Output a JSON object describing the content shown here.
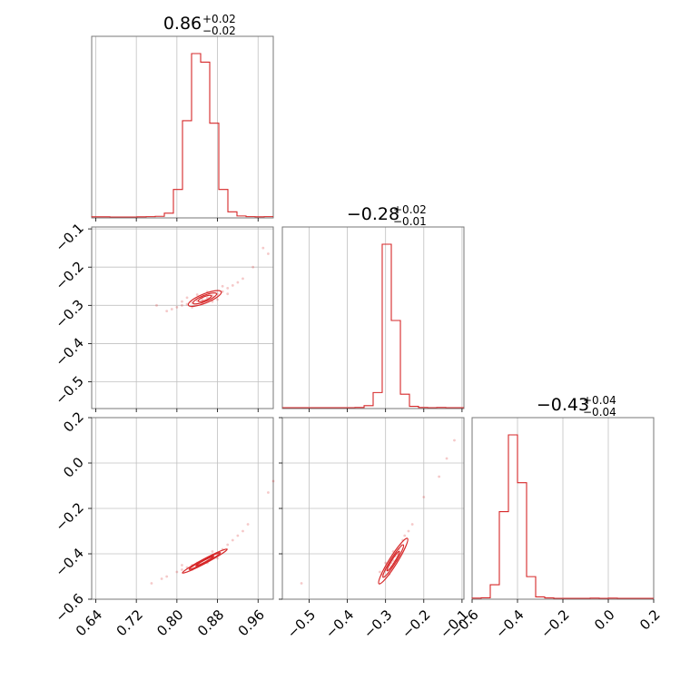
{
  "chart_data": {
    "type": "corner",
    "color": "#d62728",
    "grid": true,
    "params": [
      {
        "range": [
          0.632,
          0.99
        ],
        "ticks": [
          0.64,
          0.72,
          0.8,
          0.88,
          0.96
        ],
        "tick_labels": [
          "0.64",
          "0.72",
          "0.80",
          "0.88",
          "0.96"
        ],
        "title_median": "0.86",
        "title_plus": "+0.02",
        "title_minus": "−0.02"
      },
      {
        "range": [
          -0.57,
          -0.095
        ],
        "ticks": [
          -0.5,
          -0.4,
          -0.3,
          -0.2,
          -0.1
        ],
        "tick_labels": [
          "−0.5",
          "−0.4",
          "−0.3",
          "−0.2",
          "−0.1"
        ],
        "title_median": "−0.28",
        "title_plus": "+0.02",
        "title_minus": "−0.01"
      },
      {
        "range": [
          -0.6,
          0.2
        ],
        "ticks": [
          -0.6,
          -0.4,
          -0.2,
          0.0,
          0.2
        ],
        "tick_labels": [
          "−0.6",
          "−0.4",
          "−0.2",
          "0.0",
          "0.2"
        ],
        "title_median": "−0.43",
        "title_plus": "+0.04",
        "title_minus": "−0.04"
      }
    ],
    "histograms": [
      {
        "param": 0,
        "bin_edges": [
          0.632,
          0.6499,
          0.6678,
          0.6857,
          0.7036,
          0.7215,
          0.7394,
          0.7573,
          0.7752,
          0.7931,
          0.811,
          0.8289,
          0.8468,
          0.8647,
          0.8826,
          0.9005,
          0.9184,
          0.9363,
          0.9542,
          0.9721,
          0.99
        ],
        "counts": [
          1,
          1,
          0,
          0,
          0,
          1,
          2,
          4,
          22,
          160,
          560,
          950,
          900,
          545,
          160,
          30,
          6,
          2,
          1,
          2
        ]
      },
      {
        "param": 1,
        "bin_edges": [
          -0.57,
          -0.5462,
          -0.5225,
          -0.4988,
          -0.475,
          -0.4512,
          -0.4275,
          -0.4038,
          -0.38,
          -0.3562,
          -0.3325,
          -0.3088,
          -0.285,
          -0.2612,
          -0.2375,
          -0.2138,
          -0.19,
          -0.1662,
          -0.1425,
          -0.1188,
          -0.095
        ],
        "counts": [
          0,
          0,
          0,
          0,
          0,
          0,
          0,
          0,
          1,
          12,
          90,
          975,
          520,
          80,
          8,
          1,
          0,
          1,
          0,
          0
        ]
      },
      {
        "param": 2,
        "bin_edges": [
          -0.6,
          -0.56,
          -0.52,
          -0.48,
          -0.44,
          -0.4,
          -0.36,
          -0.32,
          -0.28,
          -0.24,
          -0.2,
          -0.16,
          -0.12,
          -0.08,
          -0.04,
          0.0,
          0.04,
          0.08,
          0.12,
          0.16,
          0.2
        ],
        "counts": [
          1,
          3,
          75,
          480,
          905,
          640,
          120,
          8,
          2,
          0,
          0,
          0,
          0,
          1,
          0,
          1,
          0,
          0,
          0,
          0
        ]
      }
    ],
    "scatter_pairs": [
      {
        "x_param": 0,
        "y_param": 1,
        "points": [
          {
            "x": 0.8,
            "y": -0.305
          },
          {
            "x": 0.81,
            "y": -0.3
          },
          {
            "x": 0.82,
            "y": -0.297
          },
          {
            "x": 0.83,
            "y": -0.293
          },
          {
            "x": 0.84,
            "y": -0.288
          },
          {
            "x": 0.85,
            "y": -0.284
          },
          {
            "x": 0.86,
            "y": -0.28
          },
          {
            "x": 0.87,
            "y": -0.275
          },
          {
            "x": 0.88,
            "y": -0.27
          },
          {
            "x": 0.89,
            "y": -0.264
          },
          {
            "x": 0.9,
            "y": -0.255
          },
          {
            "x": 0.91,
            "y": -0.248
          },
          {
            "x": 0.83,
            "y": -0.305
          },
          {
            "x": 0.85,
            "y": -0.295
          },
          {
            "x": 0.87,
            "y": -0.29
          },
          {
            "x": 0.84,
            "y": -0.272
          },
          {
            "x": 0.86,
            "y": -0.265
          },
          {
            "x": 0.82,
            "y": -0.28
          },
          {
            "x": 0.79,
            "y": -0.31
          },
          {
            "x": 0.78,
            "y": -0.315
          },
          {
            "x": 0.92,
            "y": -0.24
          },
          {
            "x": 0.93,
            "y": -0.23
          },
          {
            "x": 0.95,
            "y": -0.2
          },
          {
            "x": 0.98,
            "y": -0.165
          },
          {
            "x": 0.97,
            "y": -0.15
          },
          {
            "x": 0.76,
            "y": -0.3
          },
          {
            "x": 0.88,
            "y": -0.285
          },
          {
            "x": 0.81,
            "y": -0.29
          },
          {
            "x": 0.89,
            "y": -0.25
          },
          {
            "x": 0.9,
            "y": -0.27
          }
        ],
        "contours": [
          {
            "cx": 0.855,
            "cy": -0.282,
            "rx": 0.035,
            "ry": 0.012,
            "angle": -22
          },
          {
            "cx": 0.855,
            "cy": -0.282,
            "rx": 0.025,
            "ry": 0.008,
            "angle": -22
          },
          {
            "cx": 0.855,
            "cy": -0.282,
            "rx": 0.014,
            "ry": 0.005,
            "angle": -22
          }
        ]
      },
      {
        "x_param": 0,
        "y_param": 2,
        "points": [
          {
            "x": 0.8,
            "y": -0.48
          },
          {
            "x": 0.81,
            "y": -0.47
          },
          {
            "x": 0.82,
            "y": -0.46
          },
          {
            "x": 0.83,
            "y": -0.45
          },
          {
            "x": 0.84,
            "y": -0.44
          },
          {
            "x": 0.85,
            "y": -0.43
          },
          {
            "x": 0.86,
            "y": -0.42
          },
          {
            "x": 0.87,
            "y": -0.41
          },
          {
            "x": 0.88,
            "y": -0.4
          },
          {
            "x": 0.89,
            "y": -0.38
          },
          {
            "x": 0.9,
            "y": -0.36
          },
          {
            "x": 0.91,
            "y": -0.34
          },
          {
            "x": 0.92,
            "y": -0.32
          },
          {
            "x": 0.93,
            "y": -0.3
          },
          {
            "x": 0.94,
            "y": -0.27
          },
          {
            "x": 0.78,
            "y": -0.5
          },
          {
            "x": 0.77,
            "y": -0.51
          },
          {
            "x": 0.75,
            "y": -0.53
          },
          {
            "x": 0.83,
            "y": -0.47
          },
          {
            "x": 0.86,
            "y": -0.44
          },
          {
            "x": 0.88,
            "y": -0.42
          },
          {
            "x": 0.98,
            "y": -0.13
          },
          {
            "x": 0.99,
            "y": -0.08
          },
          {
            "x": 0.81,
            "y": -0.45
          },
          {
            "x": 0.87,
            "y": -0.39
          }
        ],
        "contours": [
          {
            "cx": 0.855,
            "cy": -0.432,
            "rx": 0.05,
            "ry": 0.01,
            "angle": -28
          },
          {
            "cx": 0.855,
            "cy": -0.432,
            "rx": 0.035,
            "ry": 0.007,
            "angle": -28
          },
          {
            "cx": 0.855,
            "cy": -0.432,
            "rx": 0.02,
            "ry": 0.004,
            "angle": -28
          }
        ]
      },
      {
        "x_param": 1,
        "y_param": 2,
        "points": [
          {
            "x": -0.3,
            "y": -0.47
          },
          {
            "x": -0.295,
            "y": -0.46
          },
          {
            "x": -0.29,
            "y": -0.45
          },
          {
            "x": -0.285,
            "y": -0.44
          },
          {
            "x": -0.28,
            "y": -0.43
          },
          {
            "x": -0.275,
            "y": -0.41
          },
          {
            "x": -0.27,
            "y": -0.4
          },
          {
            "x": -0.265,
            "y": -0.38
          },
          {
            "x": -0.26,
            "y": -0.36
          },
          {
            "x": -0.255,
            "y": -0.34
          },
          {
            "x": -0.25,
            "y": -0.32
          },
          {
            "x": -0.31,
            "y": -0.49
          },
          {
            "x": -0.305,
            "y": -0.5
          },
          {
            "x": -0.315,
            "y": -0.48
          },
          {
            "x": -0.29,
            "y": -0.49
          },
          {
            "x": -0.27,
            "y": -0.43
          },
          {
            "x": -0.28,
            "y": -0.39
          },
          {
            "x": -0.3,
            "y": -0.44
          },
          {
            "x": -0.24,
            "y": -0.3
          },
          {
            "x": -0.23,
            "y": -0.27
          },
          {
            "x": -0.2,
            "y": -0.15
          },
          {
            "x": -0.16,
            "y": -0.06
          },
          {
            "x": -0.12,
            "y": 0.1
          },
          {
            "x": -0.14,
            "y": 0.02
          },
          {
            "x": -0.52,
            "y": -0.53
          }
        ],
        "contours": [
          {
            "cx": -0.28,
            "cy": -0.432,
            "rx": 0.07,
            "ry": 0.018,
            "angle": -58
          },
          {
            "cx": -0.28,
            "cy": -0.432,
            "rx": 0.05,
            "ry": 0.012,
            "angle": -58
          },
          {
            "cx": -0.28,
            "cy": -0.432,
            "rx": 0.03,
            "ry": 0.007,
            "angle": -58
          }
        ]
      }
    ]
  }
}
